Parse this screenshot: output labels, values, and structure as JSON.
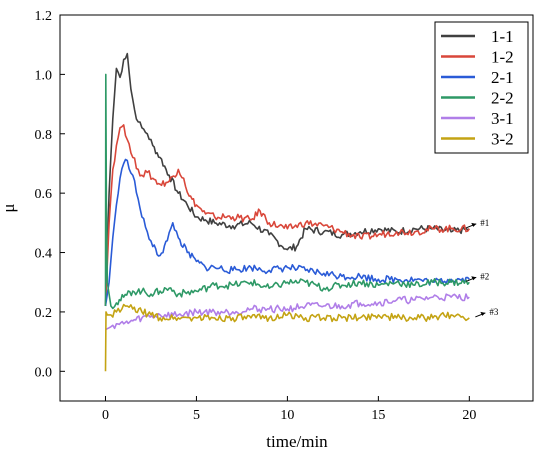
{
  "chart_data": {
    "type": "line",
    "xlabel": "time/min",
    "ylabel": "μ",
    "xlim": [
      -2.5,
      23.5
    ],
    "ylim": [
      -0.1,
      1.2
    ],
    "xticks": [
      0,
      5,
      10,
      15,
      20
    ],
    "xtick_labels": [
      "0",
      "5",
      "10",
      "15",
      "20"
    ],
    "yticks": [
      0.0,
      0.2,
      0.4,
      0.6,
      0.8,
      1.0,
      1.2
    ],
    "ytick_labels": [
      "0.0",
      "0.2",
      "0.4",
      "0.6",
      "0.8",
      "1.0",
      "1.2"
    ],
    "grid": false,
    "legend_position": "top-right",
    "series": [
      {
        "name": "1-1",
        "color": "#404040",
        "x": [
          0,
          0.2,
          0.4,
          0.6,
          0.8,
          1.0,
          1.2,
          1.4,
          1.6,
          1.8,
          2.0,
          2.3,
          2.6,
          3.0,
          3.5,
          4.0,
          4.5,
          5.0,
          5.5,
          6.0,
          7.0,
          8.0,
          9.0,
          10.0,
          10.5,
          11.0,
          12.0,
          13.0,
          14.0,
          15.0,
          16.0,
          17.0,
          18.0,
          19.0,
          20.0
        ],
        "y": [
          0.22,
          0.6,
          0.85,
          1.02,
          0.99,
          1.05,
          1.07,
          0.95,
          0.88,
          0.84,
          0.82,
          0.8,
          0.76,
          0.72,
          0.66,
          0.6,
          0.56,
          0.52,
          0.51,
          0.5,
          0.49,
          0.5,
          0.46,
          0.41,
          0.42,
          0.48,
          0.47,
          0.46,
          0.47,
          0.48,
          0.47,
          0.48,
          0.48,
          0.47,
          0.48
        ]
      },
      {
        "name": "1-2",
        "color": "#d9473a",
        "x": [
          0,
          0.2,
          0.4,
          0.6,
          0.8,
          1.0,
          1.2,
          1.5,
          1.8,
          2.0,
          2.3,
          2.6,
          3.0,
          3.5,
          4.0,
          4.3,
          4.6,
          5.0,
          5.5,
          6.0,
          7.0,
          8.0,
          8.5,
          9.0,
          10.0,
          11.0,
          12.0,
          13.0,
          14.0,
          15.0,
          16.0,
          17.0,
          18.0,
          19.0,
          20.0
        ],
        "y": [
          0.22,
          0.5,
          0.68,
          0.76,
          0.82,
          0.83,
          0.78,
          0.72,
          0.68,
          0.66,
          0.67,
          0.65,
          0.63,
          0.64,
          0.68,
          0.65,
          0.59,
          0.56,
          0.53,
          0.52,
          0.52,
          0.51,
          0.54,
          0.5,
          0.48,
          0.5,
          0.49,
          0.47,
          0.45,
          0.46,
          0.47,
          0.47,
          0.48,
          0.48,
          0.48
        ]
      },
      {
        "name": "2-1",
        "color": "#2a5bd7",
        "x": [
          0,
          0.2,
          0.4,
          0.6,
          0.8,
          1.0,
          1.2,
          1.5,
          1.8,
          2.0,
          2.3,
          2.6,
          3.0,
          3.4,
          3.7,
          4.0,
          4.5,
          5.0,
          5.5,
          6.0,
          7.0,
          8.0,
          9.0,
          10.0,
          11.0,
          12.0,
          13.0,
          14.0,
          15.0,
          16.0,
          17.0,
          18.0,
          19.0,
          20.0
        ],
        "y": [
          0.22,
          0.3,
          0.45,
          0.56,
          0.65,
          0.7,
          0.71,
          0.66,
          0.58,
          0.52,
          0.47,
          0.42,
          0.39,
          0.44,
          0.5,
          0.45,
          0.4,
          0.37,
          0.35,
          0.35,
          0.34,
          0.35,
          0.34,
          0.35,
          0.34,
          0.33,
          0.32,
          0.32,
          0.31,
          0.31,
          0.31,
          0.3,
          0.31,
          0.31
        ]
      },
      {
        "name": "2-2",
        "color": "#2e9966",
        "x": [
          0,
          0.02,
          0.05,
          0.1,
          0.3,
          0.6,
          1.0,
          1.5,
          2.0,
          2.5,
          3.0,
          3.5,
          4.0,
          5.0,
          6.0,
          7.0,
          8.0,
          9.0,
          10.0,
          11.0,
          12.0,
          13.0,
          14.0,
          15.0,
          16.0,
          17.0,
          18.0,
          19.0,
          20.0
        ],
        "y": [
          0.22,
          1.0,
          0.55,
          0.3,
          0.22,
          0.23,
          0.25,
          0.27,
          0.27,
          0.26,
          0.27,
          0.28,
          0.26,
          0.27,
          0.29,
          0.29,
          0.3,
          0.28,
          0.3,
          0.3,
          0.28,
          0.29,
          0.3,
          0.29,
          0.3,
          0.29,
          0.3,
          0.3,
          0.3
        ]
      },
      {
        "name": "3-1",
        "color": "#b07ee8",
        "x": [
          0,
          0.3,
          0.6,
          1.0,
          1.5,
          2.0,
          3.0,
          4.0,
          5.0,
          6.0,
          7.0,
          8.0,
          9.0,
          10.0,
          11.0,
          12.0,
          13.0,
          14.0,
          15.0,
          16.0,
          17.0,
          18.0,
          19.0,
          20.0
        ],
        "y": [
          0.14,
          0.15,
          0.16,
          0.16,
          0.17,
          0.18,
          0.19,
          0.19,
          0.2,
          0.2,
          0.2,
          0.21,
          0.21,
          0.21,
          0.22,
          0.22,
          0.22,
          0.23,
          0.23,
          0.24,
          0.24,
          0.25,
          0.25,
          0.25
        ]
      },
      {
        "name": "3-2",
        "color": "#c4a313",
        "x": [
          0,
          0.03,
          0.1,
          0.3,
          0.6,
          0.9,
          1.2,
          1.5,
          2.0,
          2.5,
          3.0,
          4.0,
          5.0,
          6.0,
          7.0,
          8.0,
          9.0,
          10.0,
          11.0,
          12.0,
          13.0,
          14.0,
          15.0,
          16.0,
          17.0,
          18.0,
          19.0,
          20.0
        ],
        "y": [
          0.0,
          0.2,
          0.19,
          0.19,
          0.2,
          0.21,
          0.22,
          0.21,
          0.2,
          0.19,
          0.18,
          0.18,
          0.18,
          0.18,
          0.18,
          0.18,
          0.18,
          0.19,
          0.18,
          0.18,
          0.18,
          0.18,
          0.19,
          0.18,
          0.18,
          0.18,
          0.19,
          0.18
        ]
      }
    ],
    "annotations": [
      {
        "text": "#1",
        "x": 20.6,
        "y": 0.5
      },
      {
        "text": "#2",
        "x": 20.6,
        "y": 0.32
      },
      {
        "text": "#3",
        "x": 21.1,
        "y": 0.2
      }
    ]
  }
}
